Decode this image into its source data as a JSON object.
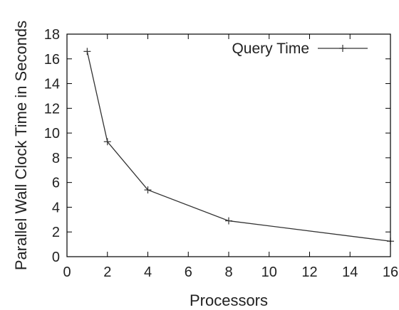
{
  "chart_data": {
    "type": "line",
    "title": "",
    "xlabel": "Processors",
    "ylabel": "Parallel Wall Clock Time in Seconds",
    "xlim": [
      0,
      16
    ],
    "ylim": [
      0,
      18
    ],
    "xticks": [
      0,
      2,
      4,
      6,
      8,
      10,
      12,
      14,
      16
    ],
    "yticks": [
      0,
      2,
      4,
      6,
      8,
      10,
      12,
      14,
      16,
      18
    ],
    "grid": false,
    "legend_position": "top-right",
    "series": [
      {
        "name": "Query Time",
        "marker": "plus",
        "color": "#333333",
        "x": [
          1,
          2,
          4,
          8,
          16
        ],
        "y": [
          16.6,
          9.3,
          5.4,
          2.9,
          1.25
        ]
      }
    ]
  }
}
